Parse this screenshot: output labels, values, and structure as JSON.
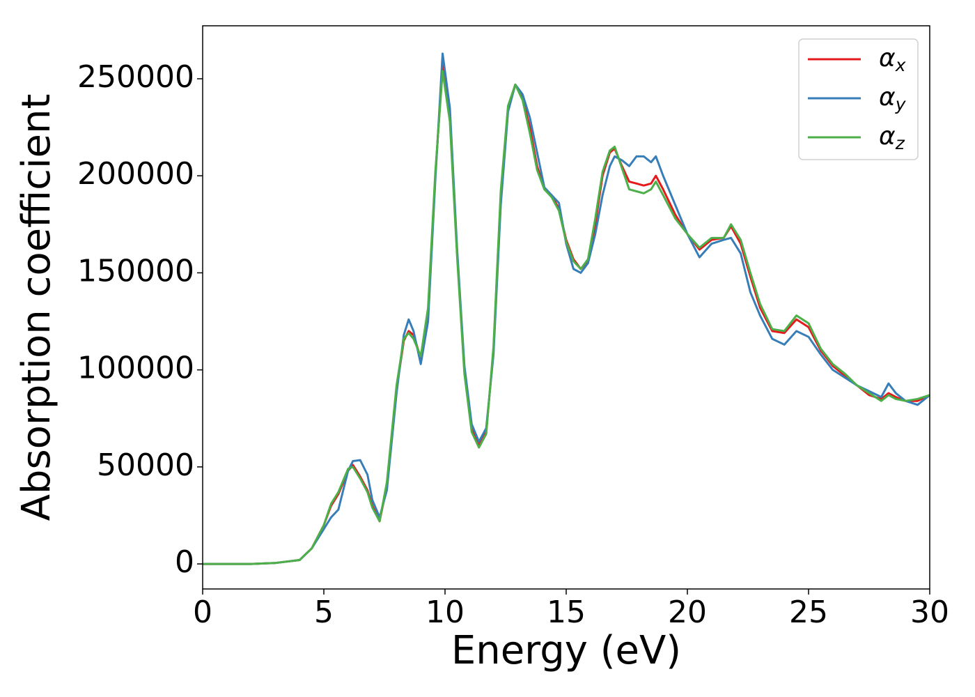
{
  "chart_data": {
    "type": "line",
    "xlabel": "Energy (eV)",
    "ylabel": "Absorption coefficient",
    "x": [
      0,
      1,
      2,
      3,
      4,
      4.5,
      5,
      5.3,
      5.6,
      6,
      6.2,
      6.5,
      6.8,
      7,
      7.3,
      7.6,
      8,
      8.3,
      8.5,
      8.7,
      9,
      9.3,
      9.6,
      9.9,
      10.2,
      10.5,
      10.8,
      11.1,
      11.4,
      11.7,
      12,
      12.3,
      12.6,
      12.9,
      13.2,
      13.5,
      13.8,
      14.1,
      14.4,
      14.7,
      15,
      15.3,
      15.6,
      15.9,
      16.2,
      16.5,
      16.8,
      17,
      17.3,
      17.6,
      17.9,
      18.2,
      18.5,
      18.7,
      19,
      19.5,
      20,
      20.5,
      21,
      21.5,
      21.8,
      22.2,
      22.6,
      23,
      23.5,
      24,
      24.5,
      25,
      25.5,
      26,
      26.5,
      27,
      27.5,
      28,
      28.3,
      28.6,
      29,
      29.5,
      30
    ],
    "series": [
      {
        "name": "αx",
        "color": "#e41a1c",
        "values": [
          0,
          0,
          0,
          500,
          2000,
          8000,
          20000,
          30000,
          36000,
          48000,
          51000,
          45000,
          38000,
          30000,
          22000,
          40000,
          90000,
          115000,
          120000,
          118000,
          106000,
          130000,
          200000,
          257000,
          230000,
          160000,
          100000,
          70000,
          61000,
          68000,
          110000,
          190000,
          235000,
          247000,
          240000,
          225000,
          205000,
          193000,
          190000,
          183000,
          167000,
          157000,
          152000,
          156000,
          175000,
          200000,
          212000,
          214000,
          205000,
          197000,
          196000,
          195000,
          196000,
          200000,
          193000,
          180000,
          170000,
          162000,
          167000,
          168000,
          174000,
          165000,
          148000,
          132000,
          120000,
          119000,
          126000,
          122000,
          110000,
          102000,
          97000,
          92000,
          87000,
          85000,
          88000,
          86000,
          84000,
          84000,
          87000
        ]
      },
      {
        "name": "αy",
        "color": "#377eb8",
        "values": [
          0,
          0,
          0,
          500,
          2000,
          8000,
          18000,
          24000,
          28000,
          48000,
          53000,
          53500,
          46000,
          33000,
          24000,
          38000,
          88000,
          118000,
          126000,
          120000,
          103000,
          125000,
          198000,
          263000,
          235000,
          162000,
          102000,
          72000,
          63000,
          70000,
          108000,
          185000,
          233000,
          247000,
          242000,
          230000,
          212000,
          194000,
          190000,
          186000,
          165000,
          152000,
          150000,
          155000,
          170000,
          190000,
          205000,
          210000,
          208000,
          205000,
          210000,
          210000,
          207000,
          210000,
          200000,
          185000,
          170000,
          158000,
          165000,
          167000,
          168000,
          160000,
          140000,
          128000,
          116000,
          113000,
          120000,
          117000,
          108000,
          100000,
          96000,
          92000,
          89000,
          86000,
          93000,
          88000,
          84000,
          82000,
          87000
        ]
      },
      {
        "name": "αz",
        "color": "#4daf4a",
        "values": [
          0,
          0,
          0,
          500,
          2000,
          8000,
          20000,
          31000,
          37000,
          49000,
          50000,
          44000,
          37000,
          29000,
          22000,
          42000,
          92000,
          116000,
          119000,
          116000,
          107000,
          132000,
          202000,
          254000,
          228000,
          158000,
          98000,
          68000,
          60000,
          67000,
          112000,
          192000,
          236000,
          247000,
          239000,
          222000,
          203000,
          193000,
          189000,
          182000,
          166000,
          156000,
          152000,
          157000,
          178000,
          202000,
          213000,
          215000,
          204000,
          193000,
          192000,
          191000,
          193000,
          197000,
          190000,
          178000,
          170000,
          163000,
          168000,
          168000,
          175000,
          167000,
          150000,
          134000,
          121000,
          120000,
          128000,
          124000,
          111000,
          103000,
          98000,
          92000,
          88000,
          84000,
          87000,
          85000,
          84000,
          85000,
          87000
        ]
      }
    ],
    "xlim": [
      0,
      30
    ],
    "xticks": [
      0,
      5,
      10,
      15,
      20,
      25,
      30
    ],
    "ylim": [
      -12900,
      277300
    ],
    "yticks": [
      0,
      50000,
      100000,
      150000,
      200000,
      250000
    ],
    "legend": "upper right",
    "grid": false
  }
}
